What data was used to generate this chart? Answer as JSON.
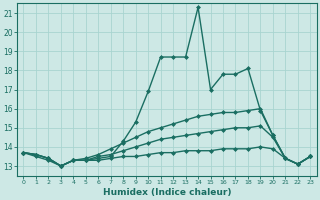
{
  "title": "",
  "xlabel": "Humidex (Indice chaleur)",
  "ylabel": "",
  "xlim": [
    -0.5,
    23.5
  ],
  "ylim": [
    12.5,
    21.5
  ],
  "yticks": [
    13,
    14,
    15,
    16,
    17,
    18,
    19,
    20,
    21
  ],
  "xticks": [
    0,
    1,
    2,
    3,
    4,
    5,
    6,
    7,
    8,
    9,
    10,
    11,
    12,
    13,
    14,
    15,
    16,
    17,
    18,
    19,
    20,
    21,
    22,
    23
  ],
  "bg_color": "#cde8e5",
  "grid_color": "#a8d4d0",
  "line_color": "#1a6e62",
  "lines": [
    {
      "x": [
        0,
        1,
        2,
        3,
        4,
        5,
        6,
        7,
        8,
        9,
        10,
        11,
        12,
        13,
        14,
        15,
        16,
        17,
        18,
        19,
        20,
        21,
        22,
        23
      ],
      "y": [
        13.7,
        13.6,
        13.4,
        13.0,
        13.3,
        13.3,
        13.4,
        13.5,
        14.3,
        15.3,
        16.9,
        18.7,
        18.7,
        18.7,
        21.3,
        17.0,
        17.8,
        17.8,
        18.1,
        15.9,
        14.6,
        13.4,
        13.1,
        13.5
      ],
      "marker": "D",
      "markersize": 2.0,
      "linewidth": 1.0
    },
    {
      "x": [
        0,
        1,
        2,
        3,
        4,
        5,
        6,
        7,
        8,
        9,
        10,
        11,
        12,
        13,
        14,
        15,
        16,
        17,
        18,
        19,
        20,
        21,
        22,
        23
      ],
      "y": [
        13.7,
        13.6,
        13.4,
        13.0,
        13.3,
        13.4,
        13.6,
        13.9,
        14.2,
        14.5,
        14.8,
        15.0,
        15.2,
        15.4,
        15.6,
        15.7,
        15.8,
        15.8,
        15.9,
        16.0,
        14.6,
        13.4,
        13.1,
        13.5
      ],
      "marker": "D",
      "markersize": 2.0,
      "linewidth": 1.0
    },
    {
      "x": [
        0,
        1,
        2,
        3,
        4,
        5,
        6,
        7,
        8,
        9,
        10,
        11,
        12,
        13,
        14,
        15,
        16,
        17,
        18,
        19,
        20,
        21,
        22,
        23
      ],
      "y": [
        13.7,
        13.6,
        13.4,
        13.0,
        13.3,
        13.3,
        13.5,
        13.6,
        13.8,
        14.0,
        14.2,
        14.4,
        14.5,
        14.6,
        14.7,
        14.8,
        14.9,
        15.0,
        15.0,
        15.1,
        14.5,
        13.4,
        13.1,
        13.5
      ],
      "marker": "D",
      "markersize": 2.0,
      "linewidth": 1.0
    },
    {
      "x": [
        0,
        1,
        2,
        3,
        4,
        5,
        6,
        7,
        8,
        9,
        10,
        11,
        12,
        13,
        14,
        15,
        16,
        17,
        18,
        19,
        20,
        21,
        22,
        23
      ],
      "y": [
        13.7,
        13.5,
        13.3,
        13.0,
        13.3,
        13.3,
        13.3,
        13.4,
        13.5,
        13.5,
        13.6,
        13.7,
        13.7,
        13.8,
        13.8,
        13.8,
        13.9,
        13.9,
        13.9,
        14.0,
        13.9,
        13.4,
        13.1,
        13.5
      ],
      "marker": "D",
      "markersize": 2.0,
      "linewidth": 1.0
    }
  ]
}
